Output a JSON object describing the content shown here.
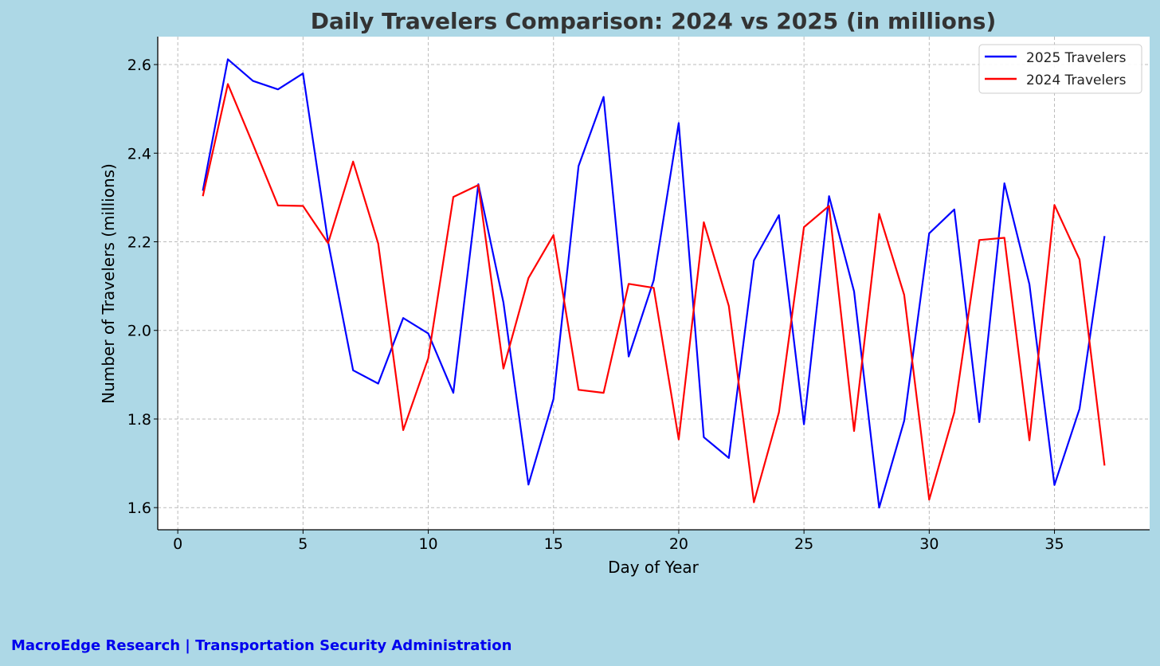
{
  "chart_data": {
    "type": "line",
    "title": "Daily Travelers Comparison: 2024 vs 2025 (in millions)",
    "xlabel": "Day of Year",
    "ylabel": "Number of Travelers (millions)",
    "xlim": [
      -0.8,
      38.8
    ],
    "ylim": [
      1.55,
      2.663
    ],
    "xticks": [
      0,
      5,
      10,
      15,
      20,
      25,
      30,
      35
    ],
    "yticks": [
      1.6,
      1.8,
      2.0,
      2.2,
      2.4,
      2.6
    ],
    "ytick_labels": [
      "1.6",
      "1.8",
      "2.0",
      "2.2",
      "2.4",
      "2.6"
    ],
    "grid": true,
    "legend_position": "top-right",
    "x": [
      1,
      2,
      3,
      4,
      5,
      6,
      7,
      8,
      9,
      10,
      11,
      12,
      13,
      14,
      15,
      16,
      17,
      18,
      19,
      20,
      21,
      22,
      23,
      24,
      25,
      26,
      27,
      28,
      29,
      30,
      31,
      32,
      33,
      34,
      35,
      36,
      37
    ],
    "series": [
      {
        "name": "2025 Travelers",
        "color": "#0000ff",
        "values": [
          2.315,
          2.612,
          2.563,
          2.544,
          2.58,
          2.2,
          1.91,
          1.88,
          2.028,
          1.993,
          1.859,
          2.33,
          2.063,
          1.652,
          1.845,
          2.371,
          2.527,
          1.941,
          2.113,
          2.468,
          1.759,
          1.712,
          2.158,
          2.26,
          1.788,
          2.303,
          2.088,
          1.6,
          1.796,
          2.219,
          2.273,
          1.793,
          2.332,
          2.104,
          1.651,
          1.823,
          2.213
        ]
      },
      {
        "name": "2024 Travelers",
        "color": "#ff0000",
        "values": [
          2.303,
          2.556,
          2.42,
          2.282,
          2.281,
          2.197,
          2.381,
          2.196,
          1.775,
          1.937,
          2.301,
          2.328,
          1.914,
          2.118,
          2.215,
          1.866,
          1.859,
          2.105,
          2.096,
          1.754,
          2.244,
          2.055,
          1.612,
          1.815,
          2.233,
          2.281,
          1.773,
          2.263,
          2.08,
          1.618,
          1.815,
          2.204,
          2.209,
          1.752,
          2.283,
          2.16,
          1.695
        ]
      }
    ]
  },
  "footer": {
    "text": "MacroEdge Research | Transportation Security Administration",
    "color": "#0000ee"
  }
}
